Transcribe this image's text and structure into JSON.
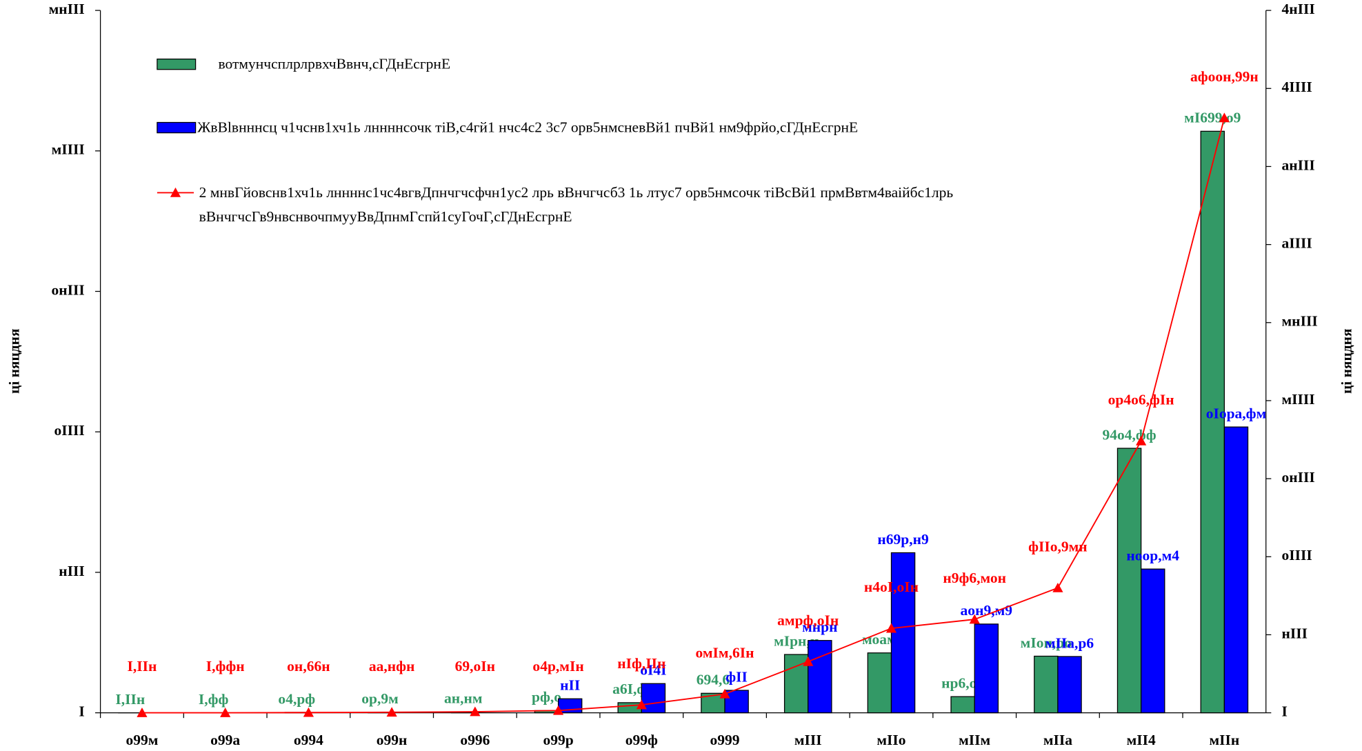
{
  "chart_data": {
    "type": "bar_line",
    "y_label": "ці няцдня",
    "y2_label": "ці няцдня",
    "categories": [
      "о99м",
      "о99а",
      "о994",
      "о99н",
      "о996",
      "о99р",
      "о99ф",
      "о999",
      "мIII",
      "мIIо",
      "мIIм",
      "мIIа",
      "мII4",
      "мIIн"
    ],
    "ylim": [
      0,
      25000
    ],
    "yticks": [
      {
        "value": 0,
        "label": "I"
      },
      {
        "value": 5000,
        "label": "нIII"
      },
      {
        "value": 10000,
        "label": "оIIII"
      },
      {
        "value": 15000,
        "label": "онIII"
      },
      {
        "value": 20000,
        "label": "мIIII"
      },
      {
        "value": 25000,
        "label": "мнIII"
      }
    ],
    "y2lim": [
      0,
      45000
    ],
    "y2ticks": [
      {
        "value": 0,
        "label": "I"
      },
      {
        "value": 5000,
        "label": "нIII"
      },
      {
        "value": 10000,
        "label": "оIIII"
      },
      {
        "value": 15000,
        "label": "онIII"
      },
      {
        "value": 20000,
        "label": "мIIII"
      },
      {
        "value": 25000,
        "label": "мнIII"
      },
      {
        "value": 30000,
        "label": "аIIII"
      },
      {
        "value": 35000,
        "label": "анIII"
      },
      {
        "value": 40000,
        "label": "4IIII"
      },
      {
        "value": 45000,
        "label": "4нIII"
      }
    ],
    "series": [
      {
        "name": "вотмунчсплрлрвхчВвнч,сГДнЕсгрнЕ",
        "color": "#339966",
        "kind": "bar",
        "values": [
          0.005,
          0.88,
          14.78,
          17.92,
          35.52,
          78.1,
          360.8,
          694.6,
          2075.5,
          2132,
          576.11,
          2015.71,
          9414.88,
          20699.19
        ],
        "value_labels": [
          "I,IIн",
          "I,фф",
          "о4,рф",
          "ор,9м",
          "ан,нм",
          "рф,о",
          "а6I,ф",
          "694,6",
          "мIрн,н",
          "моам",
          "нр6,оо",
          "мIон,ро",
          "94о4,фф",
          "мI699,о9"
        ]
      },
      {
        "name": "ЖвВlвнннсц ч1чснв1хч1ь лннннсочк тiВ,с4гй1 нчс4с2 3с7 орв5нмсневВй1 пчВй1 нм9фрйо,сГДнЕсгрнЕ",
        "color": "#0000ff",
        "kind": "bar",
        "values": [
          null,
          null,
          null,
          null,
          null,
          500,
          1040,
          800,
          2575,
          5697.59,
          3159.29,
          2003.76,
          5117.24,
          10173.82
        ],
        "value_labels": [
          null,
          null,
          null,
          null,
          null,
          "нII",
          "оI4I",
          "фII",
          "мнрн",
          "н69р,н9",
          "аон9,м9",
          "мIIа,р6",
          "ноор,м4",
          "оIора,фм"
        ]
      },
      {
        "name": "2 мнвГйовснв1хч1ь лннннс1чс4вгвДпнчгчсфчн1ус2 лрь вВнчгчсб3 1ь лтус7 орв5нмсочк тiВсВй1 прмВвтм4ваiйбс1лрь вВнчгчсГв9нвснвочпмууВвДпнмГспй1суГочГ,сГДнЕсгрнЕ",
        "color": "#ff0000",
        "kind": "line",
        "axis": "y2",
        "values": [
          0.005,
          0.885,
          15.665,
          33.585,
          69.105,
          147.205,
          508.005,
          1202.605,
          3278.105,
          5410.105,
          5986.215,
          8001.925,
          17416.805,
          38115.995
        ],
        "value_labels": [
          "I,IIн",
          "I,ффн",
          "он,66н",
          "аа,нфн",
          "69,оIн",
          "о4р,мIн",
          "нIф,IIн",
          "омIм,6Iн",
          "амрф,оIн",
          "н4оI,оIн",
          "н9ф6,мон",
          "фIIо,9мн",
          "ор4о6,фIн",
          "афоон,99н"
        ]
      }
    ]
  }
}
